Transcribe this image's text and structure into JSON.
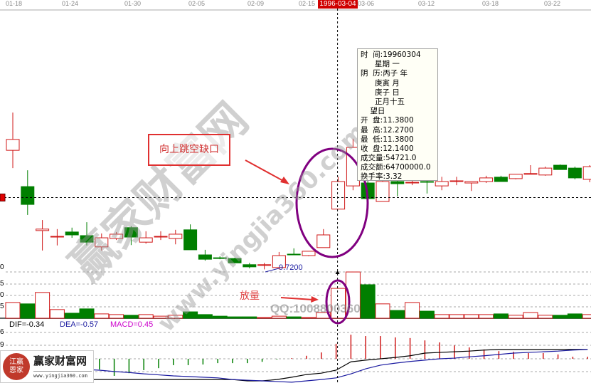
{
  "chart_data": {
    "type": "candlestick",
    "x_axis_dates": [
      "01-18",
      "01-24",
      "01-30",
      "02-05",
      "02-09",
      "02-15",
      "03-06",
      "03-12",
      "03-18",
      "03-22"
    ],
    "cursor_date": "1996-03-04",
    "candles": [
      [
        13.0,
        14.04,
        12.51,
        13.3
      ],
      [
        12.0,
        12.45,
        11.22,
        11.51
      ],
      [
        10.79,
        11.08,
        10.24,
        10.83
      ],
      [
        10.63,
        10.83,
        10.38,
        10.63
      ],
      [
        10.75,
        10.87,
        10.59,
        10.67
      ],
      [
        10.65,
        11.02,
        10.38,
        10.47
      ],
      [
        10.34,
        10.71,
        10.24,
        10.59
      ],
      [
        10.57,
        10.75,
        10.53,
        10.69
      ],
      [
        10.87,
        10.91,
        10.39,
        10.61
      ],
      [
        10.47,
        10.77,
        10.43,
        10.59
      ],
      [
        10.63,
        10.77,
        10.53,
        10.63
      ],
      [
        10.57,
        10.81,
        10.41,
        10.69
      ],
      [
        10.81,
        10.96,
        10.26,
        10.26
      ],
      [
        10.12,
        10.26,
        9.96,
        10.0
      ],
      [
        10.04,
        10.08,
        10.0,
        10.02
      ],
      [
        10.02,
        10.04,
        9.9,
        9.9
      ],
      [
        9.85,
        9.9,
        9.75,
        9.79
      ],
      [
        9.84,
        9.9,
        9.72,
        9.85
      ],
      [
        9.77,
        10.2,
        9.72,
        10.1
      ],
      [
        10.14,
        10.3,
        10.12,
        10.12
      ],
      [
        10.1,
        10.22,
        10.08,
        10.22
      ],
      [
        10.32,
        10.83,
        10.32,
        10.67
      ],
      [
        11.38,
        12.27,
        11.38,
        12.14
      ],
      [
        12.02,
        13.32,
        11.9,
        13.08
      ],
      [
        12.1,
        12.16,
        11.65,
        11.67
      ],
      [
        11.59,
        12.2,
        11.59,
        12.14
      ],
      [
        12.14,
        12.16,
        11.73,
        12.08
      ],
      [
        12.1,
        12.16,
        12.04,
        12.12
      ],
      [
        12.14,
        12.2,
        11.81,
        12.12
      ],
      [
        12.02,
        12.27,
        11.9,
        12.14
      ],
      [
        12.16,
        12.27,
        12.04,
        12.16
      ],
      [
        12.1,
        12.14,
        11.88,
        12.14
      ],
      [
        12.14,
        12.3,
        12.1,
        12.24
      ],
      [
        12.26,
        12.3,
        12.14,
        12.14
      ],
      [
        12.22,
        12.34,
        12.2,
        12.34
      ],
      [
        12.36,
        12.59,
        12.34,
        12.36
      ],
      [
        12.32,
        12.55,
        12.3,
        12.51
      ],
      [
        12.59,
        12.61,
        12.47,
        12.47
      ],
      [
        12.51,
        12.55,
        12.2,
        12.24
      ],
      [
        12.2,
        12.59,
        12.12,
        12.55
      ]
    ],
    "low_marker": "9.7200",
    "crosshair_price": 11.7,
    "volume": {
      "tick_labels": [
        "0",
        "5",
        "0",
        "5"
      ],
      "values": [
        6.9,
        6.3,
        11.3,
        3.8,
        2.2,
        4.1,
        1.9,
        1.6,
        1.3,
        1.6,
        0.9,
        1.3,
        2.8,
        1.6,
        0.9,
        0.6,
        0.6,
        0.3,
        0.9,
        0.6,
        0.3,
        2.5,
        13.1,
        20.3,
        14.7,
        6.3,
        3.4,
        6.9,
        3.1,
        1.6,
        1.6,
        1.6,
        1.6,
        1.9,
        1.3,
        2.5,
        1.3,
        1.3,
        1.9,
        1.6
      ]
    },
    "macd": {
      "tick_labels": [
        "6",
        "9"
      ],
      "dif_label": "DIF=-0.34",
      "dea_label": "DEA=-0.57",
      "macd_label": "MACD=0.45",
      "bars": [
        null,
        null,
        null,
        null,
        null,
        null,
        -0.32,
        -0.51,
        -0.43,
        -0.34,
        -0.28,
        -0.19,
        -0.19,
        -0.17,
        -0.13,
        -0.13,
        -0.13,
        -0.09,
        -0.02,
        0.02,
        0.09,
        0.19,
        0.45,
        0.72,
        0.68,
        0.68,
        0.64,
        0.62,
        0.55,
        0.49,
        0.4,
        0.34,
        0.28,
        0.23,
        0.21,
        0.17,
        0.17,
        0.13,
        0.06,
        0.06
      ],
      "dif": [
        null,
        null,
        -0.62,
        -0.62,
        -0.62,
        -0.62,
        -0.62,
        -0.62,
        -0.62,
        -0.62,
        -0.62,
        -0.62,
        -0.62,
        -0.62,
        -0.62,
        -0.62,
        -0.66,
        -0.66,
        -0.62,
        -0.55,
        -0.47,
        -0.43,
        -0.34,
        -0.09,
        -0.04,
        0.0,
        0.04,
        0.09,
        0.17,
        0.19,
        0.21,
        0.23,
        0.26,
        0.28,
        0.28,
        0.28,
        0.28,
        0.28,
        0.28,
        0.28
      ],
      "dea": [
        null,
        null,
        -0.21,
        -0.26,
        -0.3,
        -0.32,
        -0.34,
        -0.38,
        -0.41,
        -0.45,
        -0.48,
        -0.51,
        -0.53,
        -0.55,
        -0.57,
        -0.62,
        -0.64,
        -0.66,
        -0.68,
        -0.7,
        -0.66,
        -0.62,
        -0.57,
        -0.45,
        -0.3,
        -0.19,
        -0.13,
        -0.08,
        -0.04,
        0.0,
        0.02,
        0.06,
        0.09,
        0.13,
        0.17,
        0.19,
        0.21,
        0.23,
        0.26,
        0.28
      ]
    },
    "colors": {
      "up": "#d01818",
      "down": "#007f00",
      "dif": "#000000",
      "dea": "#1a1aa0",
      "macd_text": "#cc00cc",
      "annotation": "#800080"
    }
  },
  "tooltip": [
    "时  间:19960304",
    "      星期 一",
    "阴  历:丙子 年",
    "      庚寅 月",
    "      庚子 日",
    "      正月十五",
    "    望日",
    "开  盘:11.3800",
    "最  高:12.2700",
    "最  低:11.3800",
    "收  盘:12.1400",
    "成交量:54721.0",
    "成交额:64700000.0",
    "换手率:3.32"
  ],
  "annotations": {
    "gap_label": "向上跳空缺口",
    "volume_label": "放量"
  },
  "watermark": {
    "brand": "赢家财富网",
    "url": "www.yingjia360.com",
    "qq": "QQ:1008800360",
    "seal": "江恩赢家"
  },
  "logo": {
    "name": "赢家财富网",
    "url": "www.yingjia360.com"
  }
}
